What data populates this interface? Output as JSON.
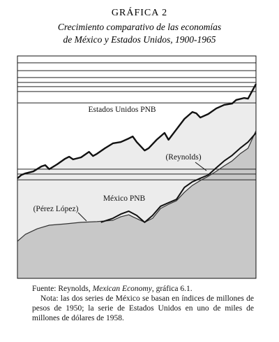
{
  "chart_data": {
    "type": "line",
    "title": "GRÁFICA 2",
    "subtitle": [
      "Crecimiento comparativo de las economías",
      "de México y Estados Unidos, 1900-1965"
    ],
    "xlim": [
      1900,
      1960
    ],
    "ylim": [
      0,
      100
    ],
    "gridlines": [
      96.9,
      93.4,
      90.3,
      88.1,
      86.2,
      84.0,
      78.9,
      49.1,
      46.9,
      44.3
    ],
    "series": [
      {
        "name": "Estados Unidos PNB",
        "color": "#111111",
        "fill": "#ececec",
        "x": [
          1900,
          1901,
          1902,
          1904,
          1906,
          1907,
          1908,
          1910,
          1912,
          1913,
          1914,
          1916,
          1918,
          1919,
          1920,
          1922,
          1924,
          1926,
          1928,
          1929,
          1930,
          1932,
          1933,
          1935,
          1937,
          1938,
          1940,
          1942,
          1944,
          1945,
          1946,
          1948,
          1950,
          1952,
          1954,
          1955,
          1957,
          1958,
          1960
        ],
        "values": [
          45.0,
          46.5,
          47.2,
          48.1,
          50.3,
          50.9,
          49.1,
          51.3,
          53.8,
          54.7,
          53.5,
          54.4,
          56.9,
          55.0,
          56.0,
          58.5,
          60.7,
          61.3,
          62.9,
          63.8,
          61.3,
          57.5,
          58.5,
          62.3,
          65.4,
          62.3,
          67.0,
          71.7,
          74.8,
          74.2,
          72.3,
          73.9,
          76.4,
          78.0,
          78.6,
          80.2,
          81.1,
          80.8,
          87.4
        ]
      },
      {
        "name": "(Reynolds)",
        "color": "#333333",
        "fill": "#c8c8c8",
        "x": [
          1900,
          1902,
          1905,
          1908,
          1912,
          1916,
          1920,
          1924,
          1926,
          1928,
          1929,
          1932,
          1934,
          1936,
          1938,
          1940,
          1942,
          1944,
          1946,
          1948,
          1950,
          1952,
          1954,
          1956,
          1958,
          1960
        ],
        "values": [
          16.7,
          19.8,
          22.3,
          23.9,
          24.5,
          25.2,
          25.5,
          26.1,
          27.7,
          28.6,
          27.7,
          25.2,
          27.0,
          31.4,
          33.3,
          34.9,
          38.7,
          41.8,
          44.0,
          45.9,
          48.1,
          50.6,
          52.8,
          56.0,
          58.5,
          66.4
        ]
      },
      {
        "name": "(Pérez López)",
        "color": "#111111",
        "x": [
          1921,
          1924,
          1926,
          1928,
          1930,
          1932,
          1934,
          1936,
          1938,
          1940,
          1942,
          1944,
          1946,
          1948,
          1950,
          1952,
          1954,
          1956,
          1958,
          1960
        ],
        "values": [
          25.2,
          27.0,
          28.9,
          30.2,
          28.3,
          25.2,
          28.3,
          32.4,
          34.0,
          35.5,
          40.9,
          43.4,
          45.0,
          46.5,
          49.7,
          52.8,
          55.3,
          58.5,
          61.3,
          65.4
        ]
      }
    ],
    "annotations": [
      "Estados Unidos PNB",
      "México PNB"
    ],
    "source": {
      "prefix": "Fuente: Reynolds, ",
      "title": "Mexican Economy",
      "suffix": ", gráfica 6.1."
    },
    "note": "Nota: las dos series de México se basan en índices de millones de pesos de 1950; la serie de Estados Unidos en uno de miles de millones de dólares de 1958."
  }
}
